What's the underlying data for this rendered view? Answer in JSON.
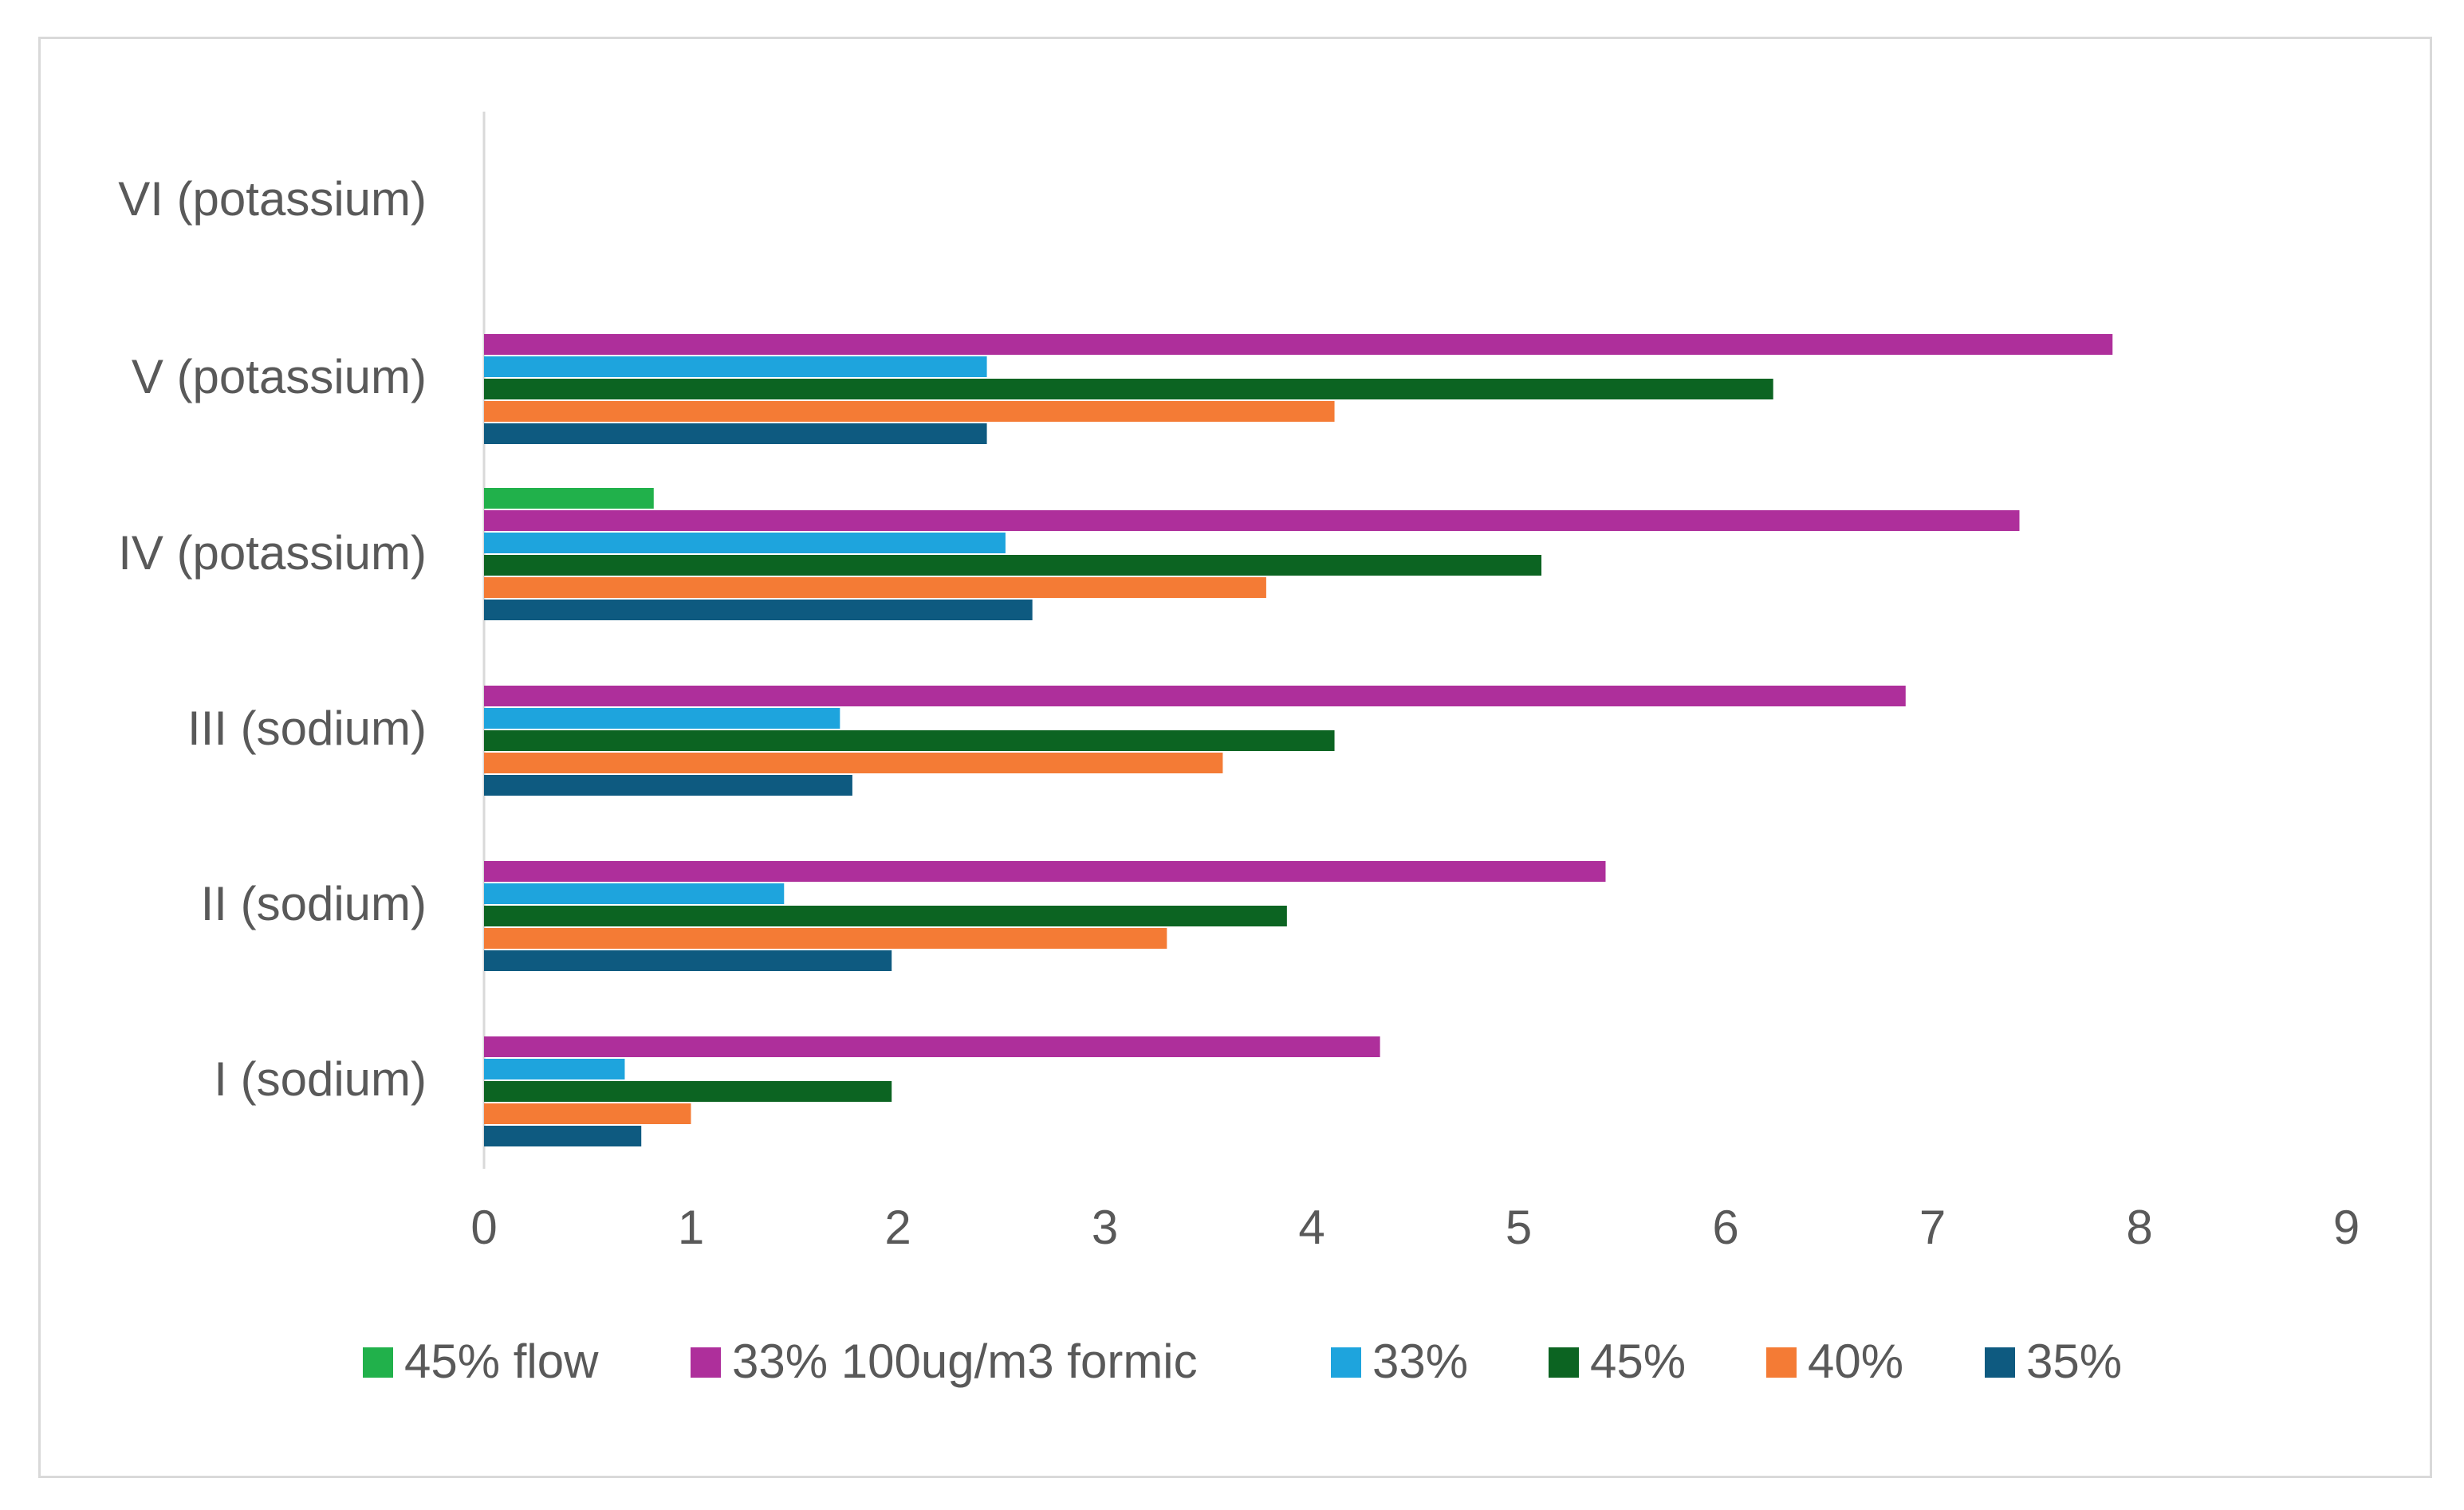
{
  "chart_data": {
    "type": "bar",
    "orientation": "horizontal",
    "title": "",
    "xlabel": "",
    "ylabel": "",
    "xlim": [
      0,
      9
    ],
    "xticks": [
      "0",
      "1",
      "2",
      "3",
      "4",
      "5",
      "6",
      "7",
      "8",
      "9"
    ],
    "grid": false,
    "legend_position": "bottom",
    "categories": [
      "I (sodium)",
      "II (sodium)",
      "III (sodium)",
      "IV (potassium)",
      "V (potassium)",
      "VI (potassium)"
    ],
    "series": [
      {
        "name": "45% flow",
        "color": "#21b14b",
        "values": [
          null,
          null,
          null,
          0.82,
          null,
          null
        ]
      },
      {
        "name": "33% 100ug/m3 formic",
        "color": "#ae2f9b",
        "values": [
          4.33,
          5.42,
          6.87,
          7.42,
          7.87,
          null
        ]
      },
      {
        "name": "33%",
        "color": "#1ea4dd",
        "values": [
          0.68,
          1.45,
          1.72,
          2.52,
          2.43,
          null
        ]
      },
      {
        "name": "45%",
        "color": "#0c6422",
        "values": [
          1.97,
          3.88,
          4.11,
          5.11,
          6.23,
          null
        ]
      },
      {
        "name": "40%",
        "color": "#f47b35",
        "values": [
          1.0,
          3.3,
          3.57,
          3.78,
          4.11,
          null
        ]
      },
      {
        "name": "35%",
        "color": "#0e5a80",
        "values": [
          0.76,
          1.97,
          1.78,
          2.65,
          2.43,
          null
        ]
      }
    ]
  }
}
